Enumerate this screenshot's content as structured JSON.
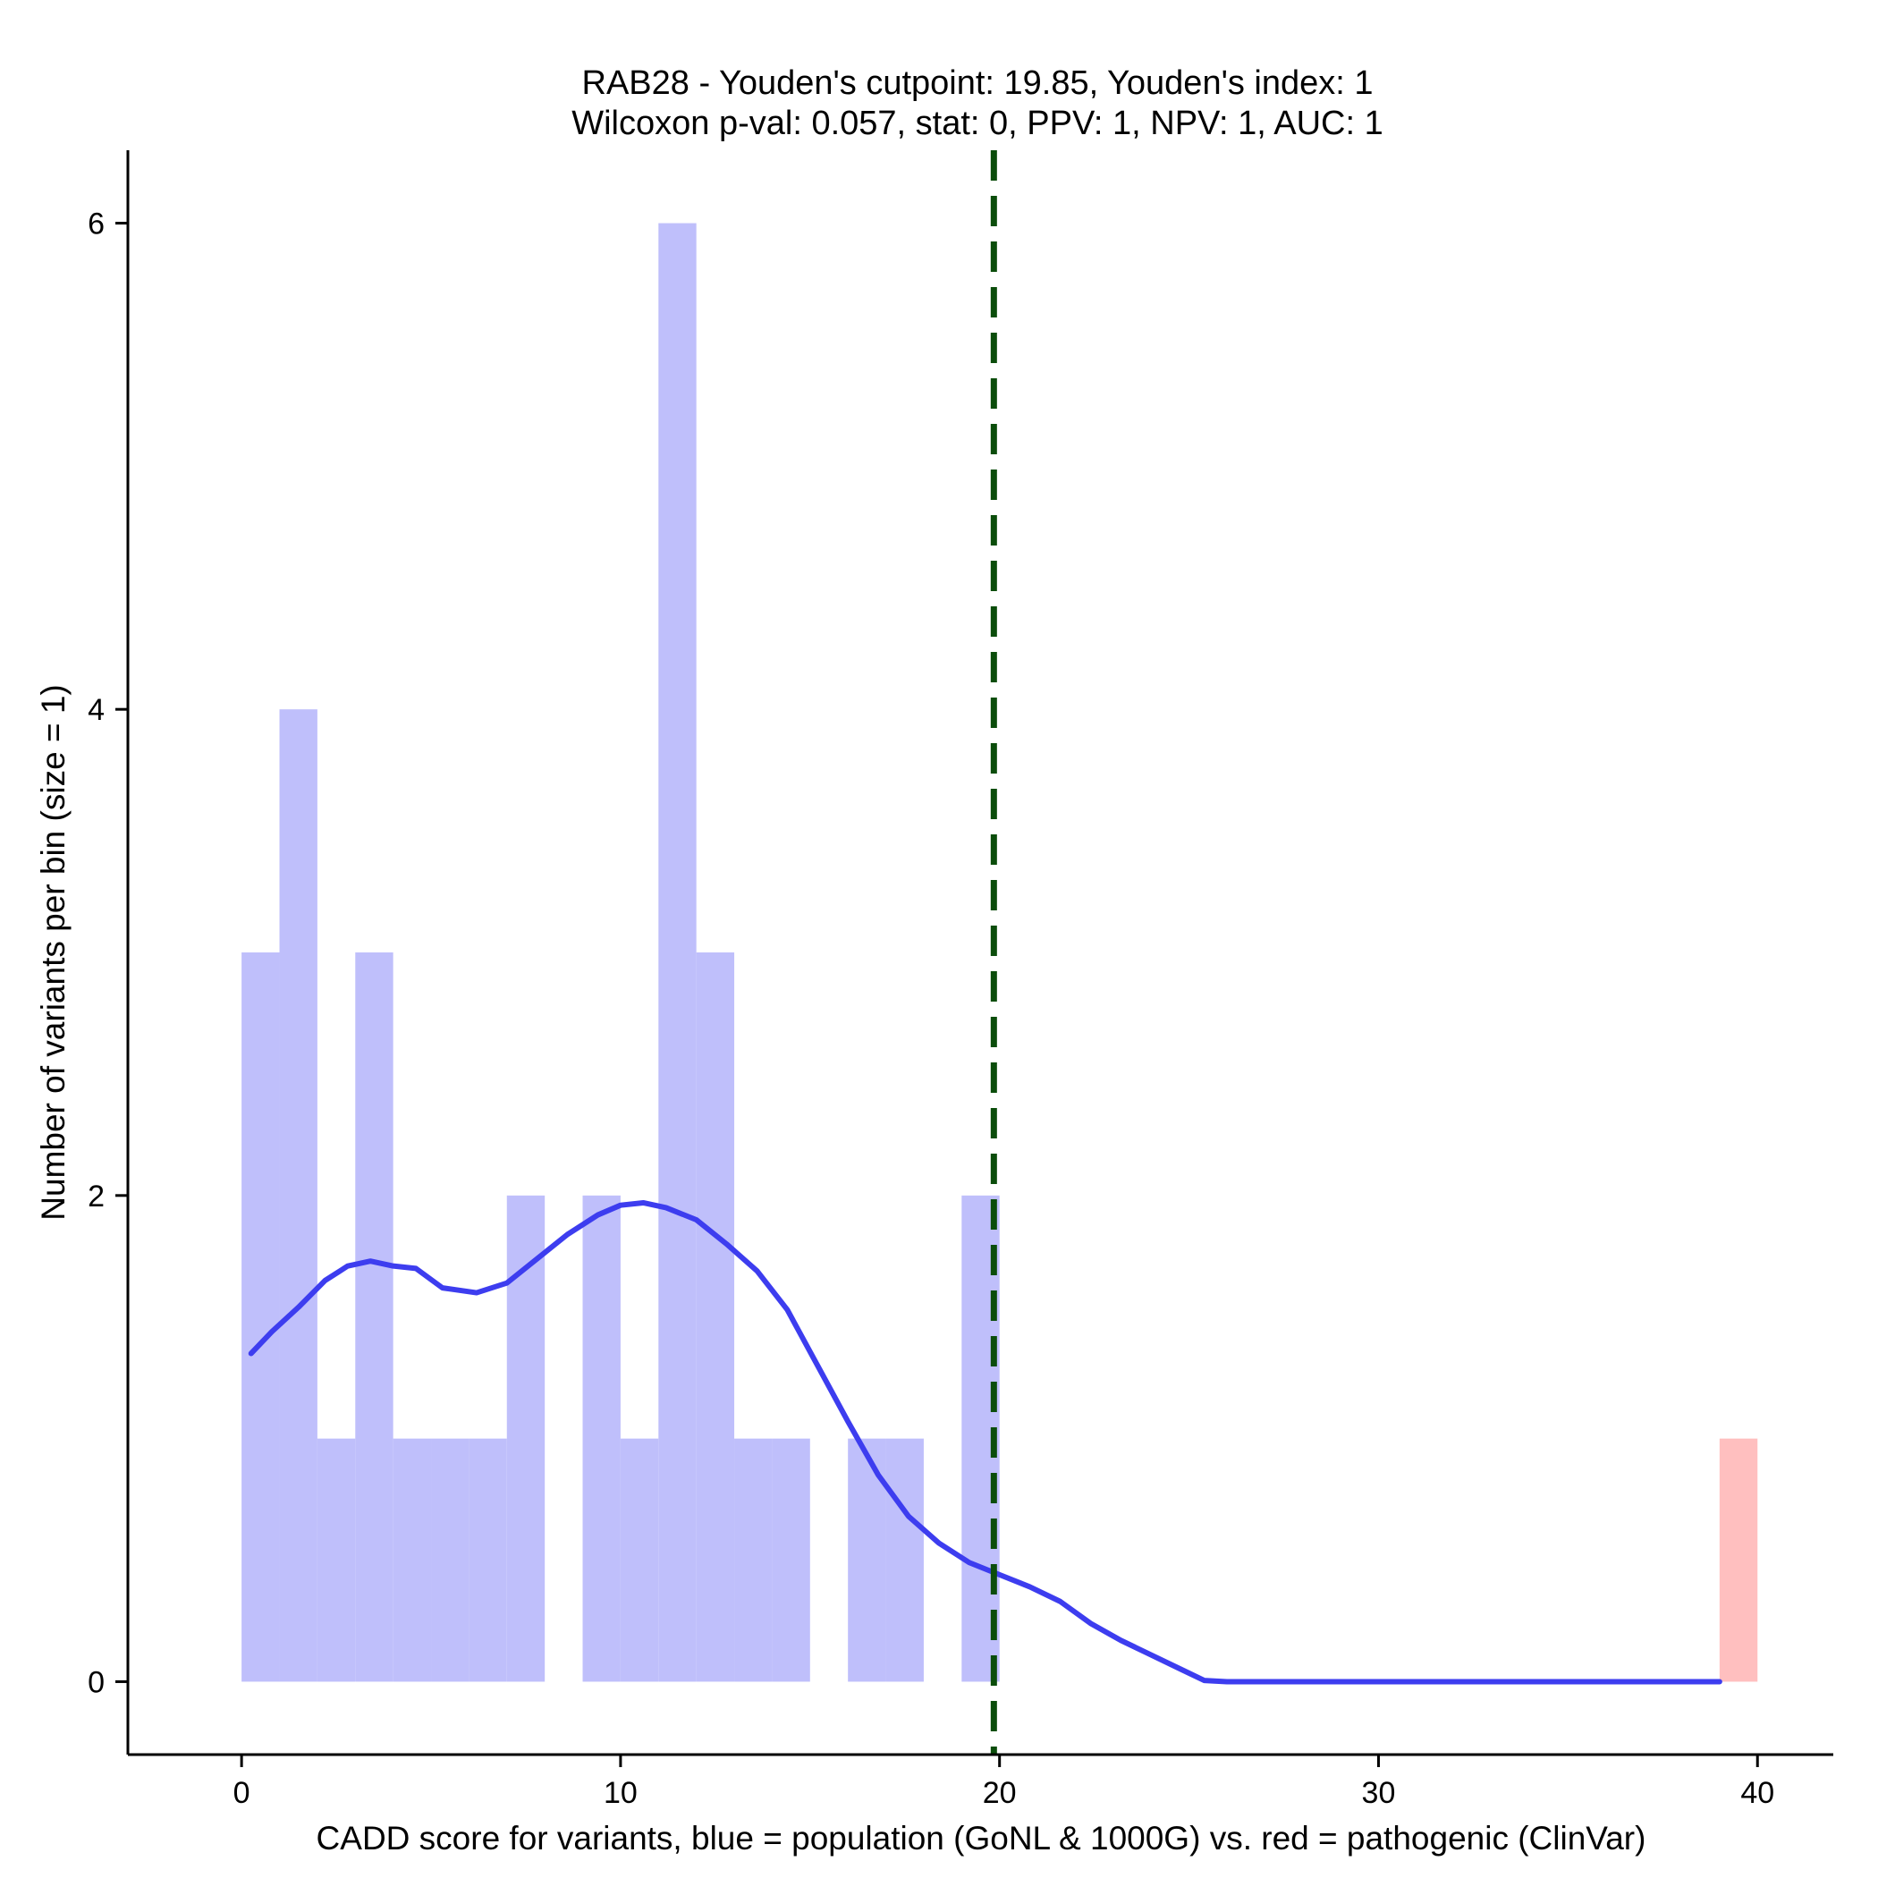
{
  "chart_data": {
    "type": "bar",
    "title_lines": [
      "RAB28 - Youden's cutpoint: 19.85, Youden's index: 1",
      "Wilcoxon p-val: 0.057, stat: 0, PPV: 1, NPV: 1, AUC: 1"
    ],
    "xlabel": "CADD score for variants, blue = population (GoNL & 1000G) vs. red = pathogenic (ClinVar)",
    "ylabel": "Number of variants per bin (size = 1)",
    "xlim": [
      -3,
      42
    ],
    "ylim": [
      -0.3,
      6.3
    ],
    "x_ticks": [
      0,
      10,
      20,
      30,
      40
    ],
    "x_tick_labels": [
      "0",
      "10",
      "20",
      "30",
      "40"
    ],
    "y_ticks": [
      0,
      2,
      4,
      6
    ],
    "y_tick_labels": [
      "0",
      "2",
      "4",
      "6"
    ],
    "bin_width": 1,
    "series": [
      {
        "color": "#bfbffb",
        "bins": [
          {
            "x0": 0,
            "count": 3
          },
          {
            "x0": 1,
            "count": 4
          },
          {
            "x0": 2,
            "count": 1
          },
          {
            "x0": 3,
            "count": 3
          },
          {
            "x0": 4,
            "count": 1
          },
          {
            "x0": 5,
            "count": 1
          },
          {
            "x0": 6,
            "count": 1
          },
          {
            "x0": 7,
            "count": 2
          },
          {
            "x0": 9,
            "count": 2
          },
          {
            "x0": 10,
            "count": 1
          },
          {
            "x0": 11,
            "count": 6
          },
          {
            "x0": 12,
            "count": 3
          },
          {
            "x0": 13,
            "count": 1
          },
          {
            "x0": 14,
            "count": 1
          },
          {
            "x0": 16,
            "count": 1
          },
          {
            "x0": 17,
            "count": 1
          },
          {
            "x0": 19,
            "count": 2
          }
        ]
      },
      {
        "color": "#ffbfbf",
        "bins": [
          {
            "x0": 39,
            "count": 1
          }
        ]
      }
    ],
    "density_curve": {
      "color": "#3d3def",
      "points": [
        [
          0.25,
          1.35
        ],
        [
          0.8,
          1.44
        ],
        [
          1.5,
          1.54
        ],
        [
          2.2,
          1.65
        ],
        [
          2.8,
          1.71
        ],
        [
          3.4,
          1.73
        ],
        [
          4.0,
          1.71
        ],
        [
          4.6,
          1.7
        ],
        [
          5.3,
          1.62
        ],
        [
          6.2,
          1.6
        ],
        [
          7.0,
          1.64
        ],
        [
          7.8,
          1.74
        ],
        [
          8.6,
          1.84
        ],
        [
          9.4,
          1.92
        ],
        [
          10.0,
          1.96
        ],
        [
          10.6,
          1.97
        ],
        [
          11.2,
          1.95
        ],
        [
          12.0,
          1.9
        ],
        [
          12.8,
          1.8
        ],
        [
          13.6,
          1.69
        ],
        [
          14.4,
          1.53
        ],
        [
          15.2,
          1.3
        ],
        [
          16.0,
          1.07
        ],
        [
          16.8,
          0.85
        ],
        [
          17.6,
          0.68
        ],
        [
          18.4,
          0.57
        ],
        [
          19.2,
          0.49
        ],
        [
          20.0,
          0.44
        ],
        [
          20.8,
          0.39
        ],
        [
          21.6,
          0.33
        ],
        [
          22.4,
          0.24
        ],
        [
          23.2,
          0.17
        ],
        [
          24.0,
          0.11
        ],
        [
          24.8,
          0.05
        ],
        [
          25.4,
          0.005
        ],
        [
          26.0,
          0.0
        ],
        [
          39.0,
          0.0
        ]
      ]
    },
    "cutpoint": {
      "x": 19.85,
      "color": "#0b4d0b",
      "style": "dashed"
    },
    "grid": false,
    "legend": "none"
  }
}
